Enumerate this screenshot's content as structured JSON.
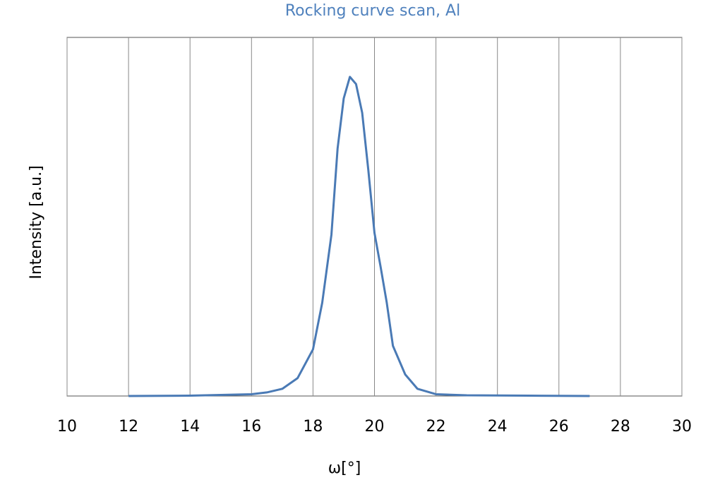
{
  "chart_data": {
    "type": "line",
    "title": "Rocking curve scan, Al",
    "x_label": "ω[°]",
    "y_label": "Intensity [a.u.]",
    "x": [
      12,
      14,
      15,
      16,
      16.5,
      17,
      17.5,
      18,
      18.3,
      18.6,
      18.8,
      19.0,
      19.2,
      19.4,
      19.6,
      19.8,
      20.0,
      20.2,
      20.4,
      20.6,
      21.0,
      21.4,
      22,
      23,
      25,
      27
    ],
    "series": [
      {
        "name": "Al",
        "color": "#4a7ab5",
        "values": [
          0,
          0.001,
          0.003,
          0.005,
          0.01,
          0.02,
          0.05,
          0.13,
          0.26,
          0.45,
          0.69,
          0.83,
          0.89,
          0.87,
          0.79,
          0.63,
          0.455,
          0.36,
          0.26,
          0.14,
          0.06,
          0.02,
          0.005,
          0.002,
          0.001,
          0
        ]
      }
    ],
    "xlim": [
      10,
      30
    ],
    "xticks": [
      10,
      12,
      14,
      16,
      18,
      20,
      22,
      24,
      26,
      28,
      30
    ],
    "ylim": [
      0,
      1
    ],
    "grid": true
  }
}
